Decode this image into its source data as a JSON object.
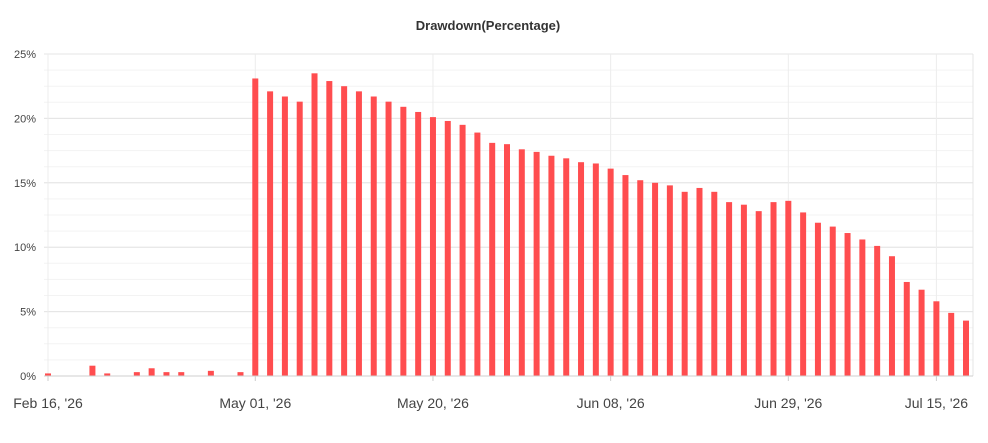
{
  "chart_data": {
    "type": "bar",
    "title": "Drawdown(Percentage)",
    "xlabel": "",
    "ylabel": "",
    "ylim": [
      0,
      25
    ],
    "y_ticks": [
      "0%",
      "5%",
      "10%",
      "15%",
      "20%",
      "25%"
    ],
    "x_tick_labels": [
      "Feb 16, '26",
      "May 01, '26",
      "May 20, '26",
      "Jun 08, '26",
      "Jun 29, '26",
      "Jul 15, '26"
    ],
    "grid": true,
    "bar_color": "#ff4d4f",
    "values": [
      0.2,
      0,
      0,
      0.8,
      0.2,
      0,
      0.3,
      0.6,
      0.3,
      0.3,
      0,
      0.4,
      0,
      0.3,
      23.1,
      22.1,
      21.7,
      21.3,
      23.5,
      22.9,
      22.5,
      22.1,
      21.7,
      21.3,
      20.9,
      20.5,
      20.1,
      19.8,
      19.5,
      18.9,
      18.1,
      18.0,
      17.6,
      17.4,
      17.1,
      16.9,
      16.6,
      16.5,
      16.1,
      15.6,
      15.2,
      15.0,
      14.8,
      14.3,
      14.6,
      14.3,
      13.5,
      13.3,
      12.8,
      13.5,
      13.6,
      12.7,
      11.9,
      11.6,
      11.1,
      10.6,
      10.1,
      9.3,
      7.3,
      6.7,
      5.8,
      4.9,
      4.3
    ]
  }
}
